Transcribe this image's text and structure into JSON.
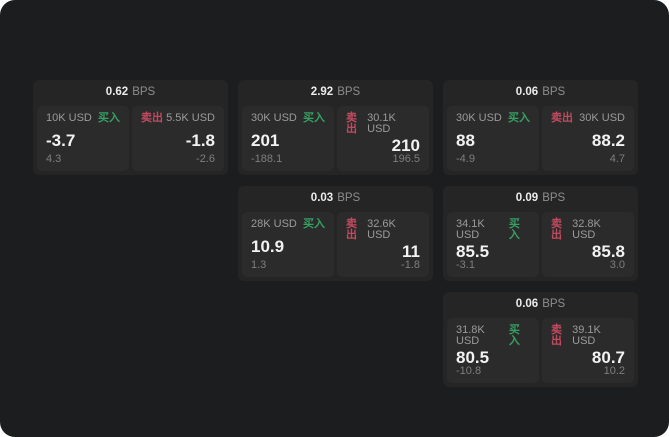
{
  "panel": {
    "background": "#1c1d1e",
    "buy_color": "#35a062",
    "sell_color": "#c24a5e"
  },
  "labels": {
    "buy": "买入",
    "sell": "卖出",
    "bps_unit": "BPS"
  },
  "cards": [
    {
      "bps": "0.62",
      "col": 1,
      "row": 1,
      "buy": {
        "amount": "10K USD",
        "price": "-3.7",
        "sub": "4.3"
      },
      "sell": {
        "amount": "5.5K USD",
        "price": "-1.8",
        "sub": "-2.6"
      }
    },
    {
      "bps": "2.92",
      "col": 2,
      "row": 1,
      "buy": {
        "amount": "30K USD",
        "price": "201",
        "sub": "-188.1"
      },
      "sell": {
        "amount": "30.1K USD",
        "price": "210",
        "sub": "196.5"
      }
    },
    {
      "bps": "0.06",
      "col": 3,
      "row": 1,
      "buy": {
        "amount": "30K USD",
        "price": "88",
        "sub": "-4.9"
      },
      "sell": {
        "amount": "30K USD",
        "price": "88.2",
        "sub": "4.7"
      }
    },
    {
      "bps": "0.03",
      "col": 2,
      "row": 2,
      "buy": {
        "amount": "28K USD",
        "price": "10.9",
        "sub": "1.3"
      },
      "sell": {
        "amount": "32.6K USD",
        "price": "11",
        "sub": "-1.8"
      }
    },
    {
      "bps": "0.09",
      "col": 3,
      "row": 2,
      "buy": {
        "amount": "34.1K USD",
        "price": "85.5",
        "sub": "-3.1"
      },
      "sell": {
        "amount": "32.8K USD",
        "price": "85.8",
        "sub": "3.0"
      }
    },
    {
      "bps": "0.06",
      "col": 3,
      "row": 3,
      "buy": {
        "amount": "31.8K USD",
        "price": "80.5",
        "sub": "-10.8"
      },
      "sell": {
        "amount": "39.1K USD",
        "price": "80.7",
        "sub": "10.2"
      }
    }
  ]
}
